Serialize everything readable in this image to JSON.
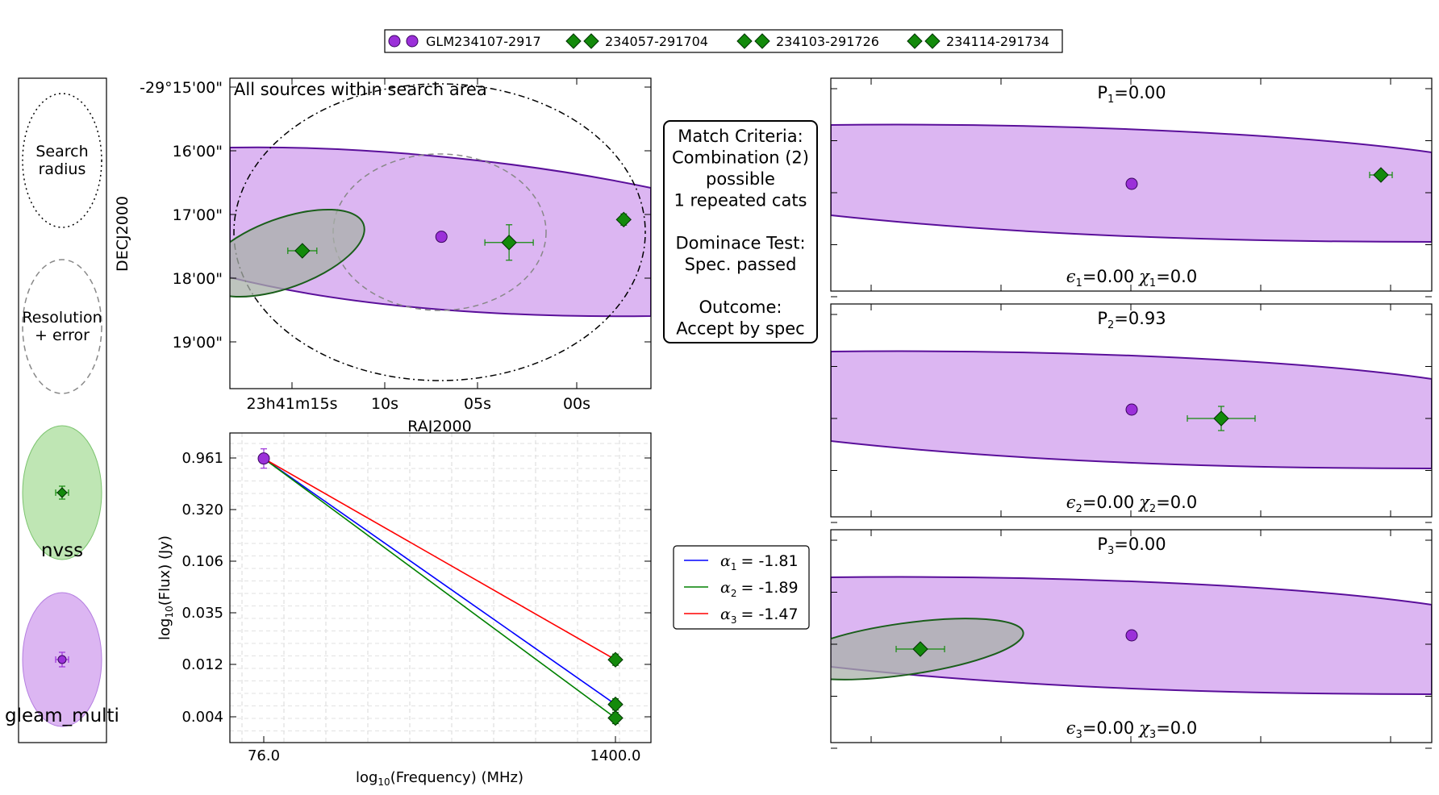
{
  "colors": {
    "gleam_fill": "#dcb6f2",
    "gleam_edge": "#5a0f9a",
    "gleam_marker": "#9b30d9",
    "nvss_fill": "#bfe6b4",
    "nvss_edge": "#1a5e1a",
    "nvss_marker": "#138a0b",
    "overlap_fill": "#a8b0a8",
    "line1": "#0000ff",
    "line2": "#008000",
    "line3": "#ff0000"
  },
  "legend_top": [
    {
      "label": "GLM234107-2917",
      "marker": "circle",
      "color": "#9b30d9"
    },
    {
      "label": "234057-291704",
      "marker": "diamond",
      "color": "#138a0b"
    },
    {
      "label": "234103-291726",
      "marker": "diamond",
      "color": "#138a0b"
    },
    {
      "label": "234114-291734",
      "marker": "diamond",
      "color": "#138a0b"
    }
  ],
  "key_panel": {
    "search_label_1": "Search",
    "search_label_2": "radius",
    "resolution_label_1": "Resolution",
    "resolution_label_2": "+ error",
    "nvss_label": "nvss",
    "gleam_label": "gleam_multi"
  },
  "criteria_box": {
    "lines": [
      "Match Criteria:",
      "Combination (2)",
      "possible",
      "1 repeated cats",
      "",
      "Dominace Test:",
      "Spec. passed",
      "",
      "Outcome:",
      "Accept by spec"
    ]
  },
  "chart_data": [
    {
      "type": "scatter",
      "title": "All sources within search area",
      "xlabel": "RAJ2000",
      "ylabel": "DECJ2000",
      "x_ticks": [
        "23h41m15s",
        "10s",
        "05s",
        "00s"
      ],
      "y_ticks": [
        "-29°15'00\"",
        "16'00\"",
        "17'00\"",
        "18'00\"",
        "19'00\""
      ],
      "points": [
        {
          "name": "GLM234107-2917",
          "ra_s": 7.2,
          "dec_min": 17.35
        },
        {
          "name": "234057-291704",
          "ra_s": 57.5,
          "dec_min": 17.08
        },
        {
          "name": "234103-291726",
          "ra_s": 3.6,
          "dec_min": 17.44
        },
        {
          "name": "234114-291734",
          "ra_s": 14.6,
          "dec_min": 17.57
        }
      ]
    },
    {
      "type": "line",
      "xlabel_prefix": "log",
      "xlabel_sub": "10",
      "xlabel_suffix": "(Frequency) (MHz)",
      "ylabel_prefix": "log",
      "ylabel_sub": "10",
      "ylabel_suffix": "(Flux) (Jy)",
      "x_ticks": [
        "76.0",
        "1400.0"
      ],
      "y_ticks": [
        "0.961",
        "0.320",
        "0.106",
        "0.035",
        "0.012",
        "0.004"
      ],
      "gleam_point": {
        "freq": 76.0,
        "flux": 0.95
      },
      "nvss_points": [
        {
          "freq": 1400.0,
          "flux": 0.0134
        },
        {
          "freq": 1400.0,
          "flux": 0.0052
        },
        {
          "freq": 1400.0,
          "flux": 0.0039
        }
      ],
      "series": [
        {
          "name": "α1 = -1.81",
          "greek": "α",
          "sub": "1",
          "value": "= -1.81",
          "from_flux": 0.95,
          "to_flux": 0.0052,
          "color": "#0000ff"
        },
        {
          "name": "α2 = -1.89",
          "greek": "α",
          "sub": "2",
          "value": "= -1.89",
          "from_flux": 0.95,
          "to_flux": 0.0039,
          "color": "#008000"
        },
        {
          "name": "α3 = -1.47",
          "greek": "α",
          "sub": "3",
          "value": "= -1.47",
          "from_flux": 0.95,
          "to_flux": 0.0134,
          "color": "#ff0000"
        }
      ]
    }
  ],
  "panels": [
    {
      "p_prefix": "P",
      "p_sub": "1",
      "p_value": "=0.00",
      "e_sub": "1",
      "e_value": "=0.00",
      "chi_sub": "1",
      "chi_value": "=0.0"
    },
    {
      "p_prefix": "P",
      "p_sub": "2",
      "p_value": "=0.93",
      "e_sub": "2",
      "e_value": "=0.00",
      "chi_sub": "2",
      "chi_value": "=0.0"
    },
    {
      "p_prefix": "P",
      "p_sub": "3",
      "p_value": "=0.00",
      "e_sub": "3",
      "e_value": "=0.00",
      "chi_sub": "3",
      "chi_value": "=0.0"
    }
  ],
  "greek": {
    "epsilon": "ϵ",
    "chi": "χ"
  }
}
